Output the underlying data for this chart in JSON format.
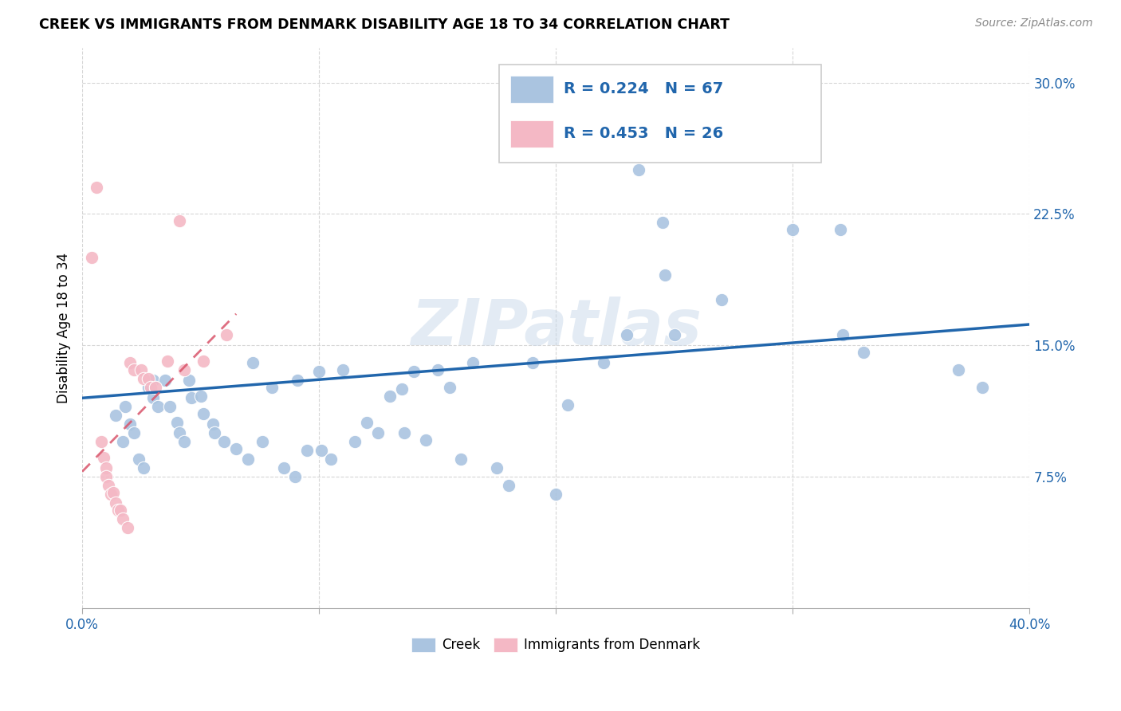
{
  "title": "CREEK VS IMMIGRANTS FROM DENMARK DISABILITY AGE 18 TO 34 CORRELATION CHART",
  "source": "Source: ZipAtlas.com",
  "ylabel": "Disability Age 18 to 34",
  "xlim": [
    0.0,
    0.4
  ],
  "ylim": [
    0.0,
    0.32
  ],
  "xtick_vals": [
    0.0,
    0.1,
    0.2,
    0.3,
    0.4
  ],
  "xtick_labels": [
    "0.0%",
    "",
    "",
    "",
    "40.0%"
  ],
  "ytick_vals": [
    0.075,
    0.15,
    0.225,
    0.3
  ],
  "ytick_labels": [
    "7.5%",
    "15.0%",
    "22.5%",
    "30.0%"
  ],
  "creek_color": "#aac4e0",
  "denmark_color": "#f4b8c5",
  "creek_line_color": "#2166ac",
  "denmark_line_color": "#d9556b",
  "creek_R": 0.224,
  "creek_N": 67,
  "denmark_R": 0.453,
  "denmark_N": 26,
  "legend_text_color": "#2166ac",
  "watermark": "ZIPatlas",
  "background_color": "#ffffff",
  "creek_scatter": [
    [
      0.018,
      0.115
    ],
    [
      0.02,
      0.105
    ],
    [
      0.014,
      0.11
    ],
    [
      0.017,
      0.095
    ],
    [
      0.022,
      0.1
    ],
    [
      0.024,
      0.085
    ],
    [
      0.026,
      0.08
    ],
    [
      0.028,
      0.126
    ],
    [
      0.03,
      0.13
    ],
    [
      0.03,
      0.12
    ],
    [
      0.032,
      0.115
    ],
    [
      0.035,
      0.13
    ],
    [
      0.037,
      0.115
    ],
    [
      0.04,
      0.106
    ],
    [
      0.041,
      0.1
    ],
    [
      0.043,
      0.095
    ],
    [
      0.045,
      0.13
    ],
    [
      0.046,
      0.12
    ],
    [
      0.05,
      0.121
    ],
    [
      0.051,
      0.111
    ],
    [
      0.055,
      0.105
    ],
    [
      0.056,
      0.1
    ],
    [
      0.06,
      0.095
    ],
    [
      0.065,
      0.091
    ],
    [
      0.07,
      0.085
    ],
    [
      0.072,
      0.14
    ],
    [
      0.076,
      0.095
    ],
    [
      0.08,
      0.126
    ],
    [
      0.085,
      0.08
    ],
    [
      0.09,
      0.075
    ],
    [
      0.091,
      0.13
    ],
    [
      0.095,
      0.09
    ],
    [
      0.1,
      0.135
    ],
    [
      0.101,
      0.09
    ],
    [
      0.105,
      0.085
    ],
    [
      0.11,
      0.136
    ],
    [
      0.115,
      0.095
    ],
    [
      0.12,
      0.106
    ],
    [
      0.125,
      0.1
    ],
    [
      0.13,
      0.121
    ],
    [
      0.135,
      0.125
    ],
    [
      0.136,
      0.1
    ],
    [
      0.14,
      0.135
    ],
    [
      0.145,
      0.096
    ],
    [
      0.15,
      0.136
    ],
    [
      0.155,
      0.126
    ],
    [
      0.16,
      0.085
    ],
    [
      0.165,
      0.14
    ],
    [
      0.175,
      0.08
    ],
    [
      0.18,
      0.07
    ],
    [
      0.19,
      0.14
    ],
    [
      0.2,
      0.065
    ],
    [
      0.205,
      0.116
    ],
    [
      0.22,
      0.14
    ],
    [
      0.23,
      0.156
    ],
    [
      0.235,
      0.25
    ],
    [
      0.24,
      0.27
    ],
    [
      0.245,
      0.22
    ],
    [
      0.246,
      0.19
    ],
    [
      0.25,
      0.156
    ],
    [
      0.27,
      0.176
    ],
    [
      0.3,
      0.216
    ],
    [
      0.32,
      0.216
    ],
    [
      0.321,
      0.156
    ],
    [
      0.33,
      0.146
    ],
    [
      0.37,
      0.136
    ],
    [
      0.38,
      0.126
    ]
  ],
  "denmark_scatter": [
    [
      0.004,
      0.2
    ],
    [
      0.006,
      0.24
    ],
    [
      0.008,
      0.095
    ],
    [
      0.009,
      0.086
    ],
    [
      0.01,
      0.08
    ],
    [
      0.01,
      0.075
    ],
    [
      0.011,
      0.07
    ],
    [
      0.012,
      0.065
    ],
    [
      0.013,
      0.066
    ],
    [
      0.014,
      0.06
    ],
    [
      0.015,
      0.056
    ],
    [
      0.016,
      0.056
    ],
    [
      0.017,
      0.051
    ],
    [
      0.019,
      0.046
    ],
    [
      0.02,
      0.14
    ],
    [
      0.022,
      0.136
    ],
    [
      0.025,
      0.136
    ],
    [
      0.026,
      0.131
    ],
    [
      0.028,
      0.131
    ],
    [
      0.029,
      0.126
    ],
    [
      0.031,
      0.126
    ],
    [
      0.036,
      0.141
    ],
    [
      0.041,
      0.221
    ],
    [
      0.043,
      0.136
    ],
    [
      0.051,
      0.141
    ],
    [
      0.061,
      0.156
    ]
  ],
  "creek_trend_x": [
    0.0,
    0.4
  ],
  "creek_trend_y": [
    0.12,
    0.162
  ],
  "denmark_trend_x": [
    0.0,
    0.065
  ],
  "denmark_trend_y": [
    0.078,
    0.168
  ]
}
